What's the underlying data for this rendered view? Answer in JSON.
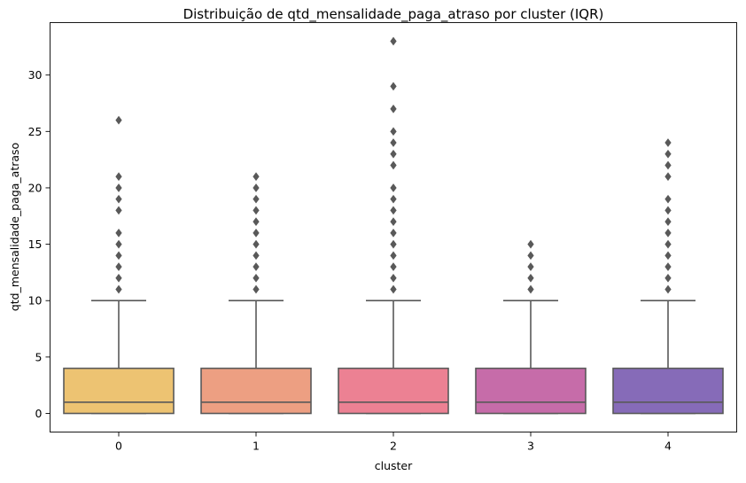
{
  "chart_data": {
    "type": "box",
    "title": "Distribuição de qtd_mensalidade_paga_atraso por cluster (IQR)",
    "xlabel": "cluster",
    "ylabel": "qtd_mensalidade_paga_atraso",
    "categories": [
      "0",
      "1",
      "2",
      "3",
      "4"
    ],
    "ylim": [
      -1.65,
      34.65
    ],
    "yticks": [
      0,
      5,
      10,
      15,
      20,
      25,
      30
    ],
    "grid": false,
    "legend": "none",
    "boxes": [
      {
        "category": "0",
        "color": "#edc372",
        "whisker_low": 0,
        "q1": 0,
        "median": 1,
        "q3": 4,
        "whisker_high": 10,
        "outliers": [
          11,
          12,
          13,
          14,
          15,
          16,
          18,
          19,
          20,
          21,
          26
        ]
      },
      {
        "category": "1",
        "color": "#ed9f82",
        "whisker_low": 0,
        "q1": 0,
        "median": 1,
        "q3": 4,
        "whisker_high": 10,
        "outliers": [
          11,
          12,
          13,
          14,
          15,
          16,
          17,
          18,
          19,
          20,
          21
        ]
      },
      {
        "category": "2",
        "color": "#ec8193",
        "whisker_low": 0,
        "q1": 0,
        "median": 1,
        "q3": 4,
        "whisker_high": 10,
        "outliers": [
          11,
          12,
          13,
          14,
          15,
          16,
          17,
          18,
          19,
          20,
          22,
          23,
          24,
          25,
          27,
          29,
          33
        ]
      },
      {
        "category": "3",
        "color": "#c66ca9",
        "whisker_low": 0,
        "q1": 0,
        "median": 1,
        "q3": 4,
        "whisker_high": 10,
        "outliers": [
          11,
          12,
          13,
          14,
          15
        ]
      },
      {
        "category": "4",
        "color": "#866bb8",
        "whisker_low": 0,
        "q1": 0,
        "median": 1,
        "q3": 4,
        "whisker_high": 10,
        "outliers": [
          11,
          12,
          13,
          14,
          15,
          16,
          17,
          18,
          19,
          21,
          22,
          23,
          24
        ]
      }
    ],
    "line_color": "#595959"
  }
}
